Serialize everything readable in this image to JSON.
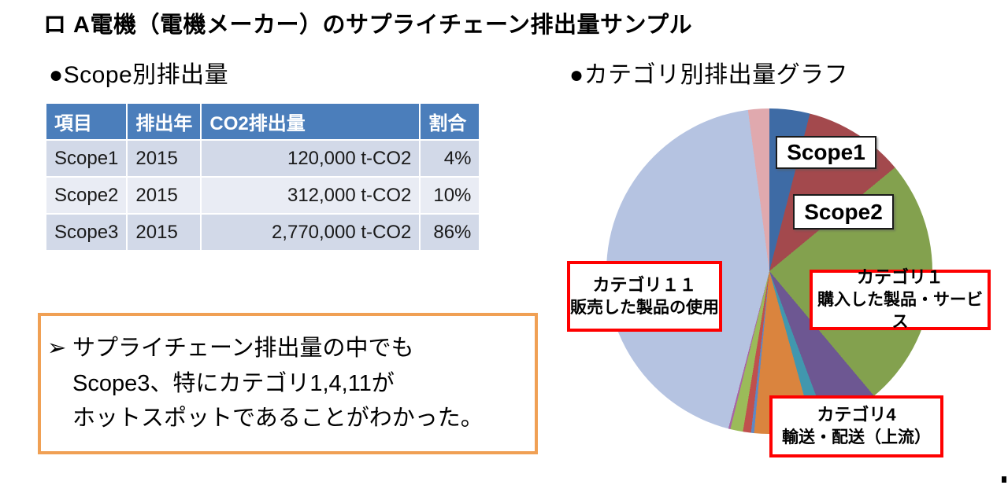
{
  "page": {
    "title": "ロ A電機（電機メーカー）のサプライチェーン排出量サンプル",
    "left_section_heading": "●Scope別排出量",
    "right_section_heading": "●カテゴリ別排出量グラフ"
  },
  "table": {
    "headers": [
      "項目",
      "排出年",
      "CO2排出量",
      "割合"
    ],
    "rows": [
      [
        "Scope1",
        "2015",
        "120,000 t-CO2",
        "4%"
      ],
      [
        "Scope2",
        "2015",
        "312,000 t-CO2",
        "10%"
      ],
      [
        "Scope3",
        "2015",
        "2,770,000 t-CO2",
        "86%"
      ]
    ],
    "header_bg": "#4B7EBB",
    "row_bg_odd": "#D2D9E8",
    "row_bg_even": "#E9ECF4"
  },
  "callout": {
    "bullet": "➢",
    "lines": [
      "サプライチェーン排出量の中でも",
      "Scope3、特にカテゴリ1,4,11が",
      "ホットスポットであることがわかった。"
    ],
    "border_color": "#F0A054"
  },
  "pie_labels": {
    "scope1": "Scope1",
    "scope2": "Scope2",
    "cat11_line1": "カテゴリ１１",
    "cat11_line2": "販売した製品の使用",
    "cat1_line1": "カテゴリ１",
    "cat1_line2": "購入した製品・サービス",
    "cat4_line1": "カテゴリ4",
    "cat4_line2": "輸送・配送（上流）"
  },
  "chart_data": {
    "type": "pie",
    "title": "カテゴリ別排出量グラフ",
    "start_angle_deg": 0,
    "direction": "clockwise",
    "legend_position": "none",
    "slices": [
      {
        "label": "Scope1",
        "percent": 4.0,
        "color": "#3E6BA5"
      },
      {
        "label": "Scope2",
        "percent": 10.0,
        "color": "#A3494D"
      },
      {
        "label": "カテゴリ１ 購入した製品・サービス",
        "percent": 24.9,
        "color": "#83A14E"
      },
      {
        "label": "",
        "percent": 5.4,
        "color": "#6D5792"
      },
      {
        "label": "",
        "percent": 1.4,
        "color": "#4197AE"
      },
      {
        "label": "カテゴリ4 輸送・配送（上流）",
        "percent": 5.8,
        "color": "#DA843E"
      },
      {
        "label": "",
        "percent": 0.3,
        "color": "#5E88C4"
      },
      {
        "label": "",
        "percent": 0.8,
        "color": "#C0504D"
      },
      {
        "label": "",
        "percent": 1.25,
        "color": "#9BBB59"
      },
      {
        "label": "",
        "percent": 0.2,
        "color": "#A965A5"
      },
      {
        "label": "カテゴリ１１ 販売した製品の使用",
        "percent": 43.85,
        "color": "#B5C3E1"
      },
      {
        "label": "",
        "percent": 2.1,
        "color": "#E0A9AE"
      }
    ]
  }
}
